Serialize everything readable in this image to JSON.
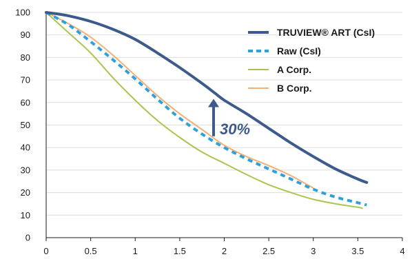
{
  "chart_data": {
    "type": "line",
    "xlim": [
      0,
      4
    ],
    "ylim": [
      0,
      100
    ],
    "x_ticks": [
      "0",
      "0.5",
      "1",
      "1.5",
      "2",
      "2.5",
      "3",
      "3.5",
      "4"
    ],
    "y_ticks": [
      "0",
      "10",
      "20",
      "30",
      "40",
      "50",
      "60",
      "70",
      "80",
      "90",
      "100"
    ],
    "grid": "horizontal",
    "legend_position": "top-right",
    "series": [
      {
        "name": "TRUVIEW® ART (CsI)",
        "color": "#3d5a8c",
        "style": "solid-thick",
        "x": [
          0,
          0.25,
          0.5,
          0.75,
          1.0,
          1.25,
          1.5,
          1.75,
          1.9,
          2.0,
          2.25,
          2.5,
          2.75,
          3.0,
          3.25,
          3.5,
          3.6
        ],
        "y": [
          100,
          98.5,
          96,
          92.5,
          88,
          82,
          75.5,
          68.5,
          64,
          61,
          55,
          48.5,
          42,
          36,
          30.5,
          26,
          24.5
        ]
      },
      {
        "name": "Raw (CsI)",
        "color": "#2ea0dd",
        "style": "dashed",
        "x": [
          0,
          0.25,
          0.5,
          0.75,
          1.0,
          1.25,
          1.5,
          1.75,
          2.0,
          2.25,
          2.5,
          2.75,
          3.0,
          3.25,
          3.5,
          3.6
        ],
        "y": [
          100,
          94.5,
          87,
          79,
          70.5,
          61.5,
          53,
          46,
          40,
          35,
          30.5,
          26,
          21.5,
          18,
          15.5,
          14.5
        ]
      },
      {
        "name": "A Corp.",
        "color": "#a8c64f",
        "style": "solid-thin",
        "x": [
          0,
          0.25,
          0.5,
          0.75,
          1.0,
          1.25,
          1.5,
          1.75,
          2.0,
          2.25,
          2.5,
          2.75,
          3.0,
          3.25,
          3.5,
          3.55
        ],
        "y": [
          100,
          91,
          82,
          71,
          61,
          52,
          44.5,
          38,
          33,
          28,
          23.5,
          20,
          17,
          15,
          13.5,
          13
        ]
      },
      {
        "name": "B Corp.",
        "color": "#f4ae72",
        "style": "solid-thin",
        "x": [
          0,
          0.25,
          0.5,
          0.75,
          1.0,
          1.25,
          1.5,
          1.75,
          2.0,
          2.25,
          2.5,
          2.75,
          3.0
        ],
        "y": [
          100,
          95,
          89,
          81,
          72,
          63,
          55,
          48,
          41,
          36,
          32,
          27.5,
          22
        ]
      }
    ],
    "annotation": {
      "text": "30%",
      "color": "#3d5a8c",
      "arrow_x": 1.88,
      "arrow_from_y": 45,
      "arrow_to_y": 61
    }
  }
}
